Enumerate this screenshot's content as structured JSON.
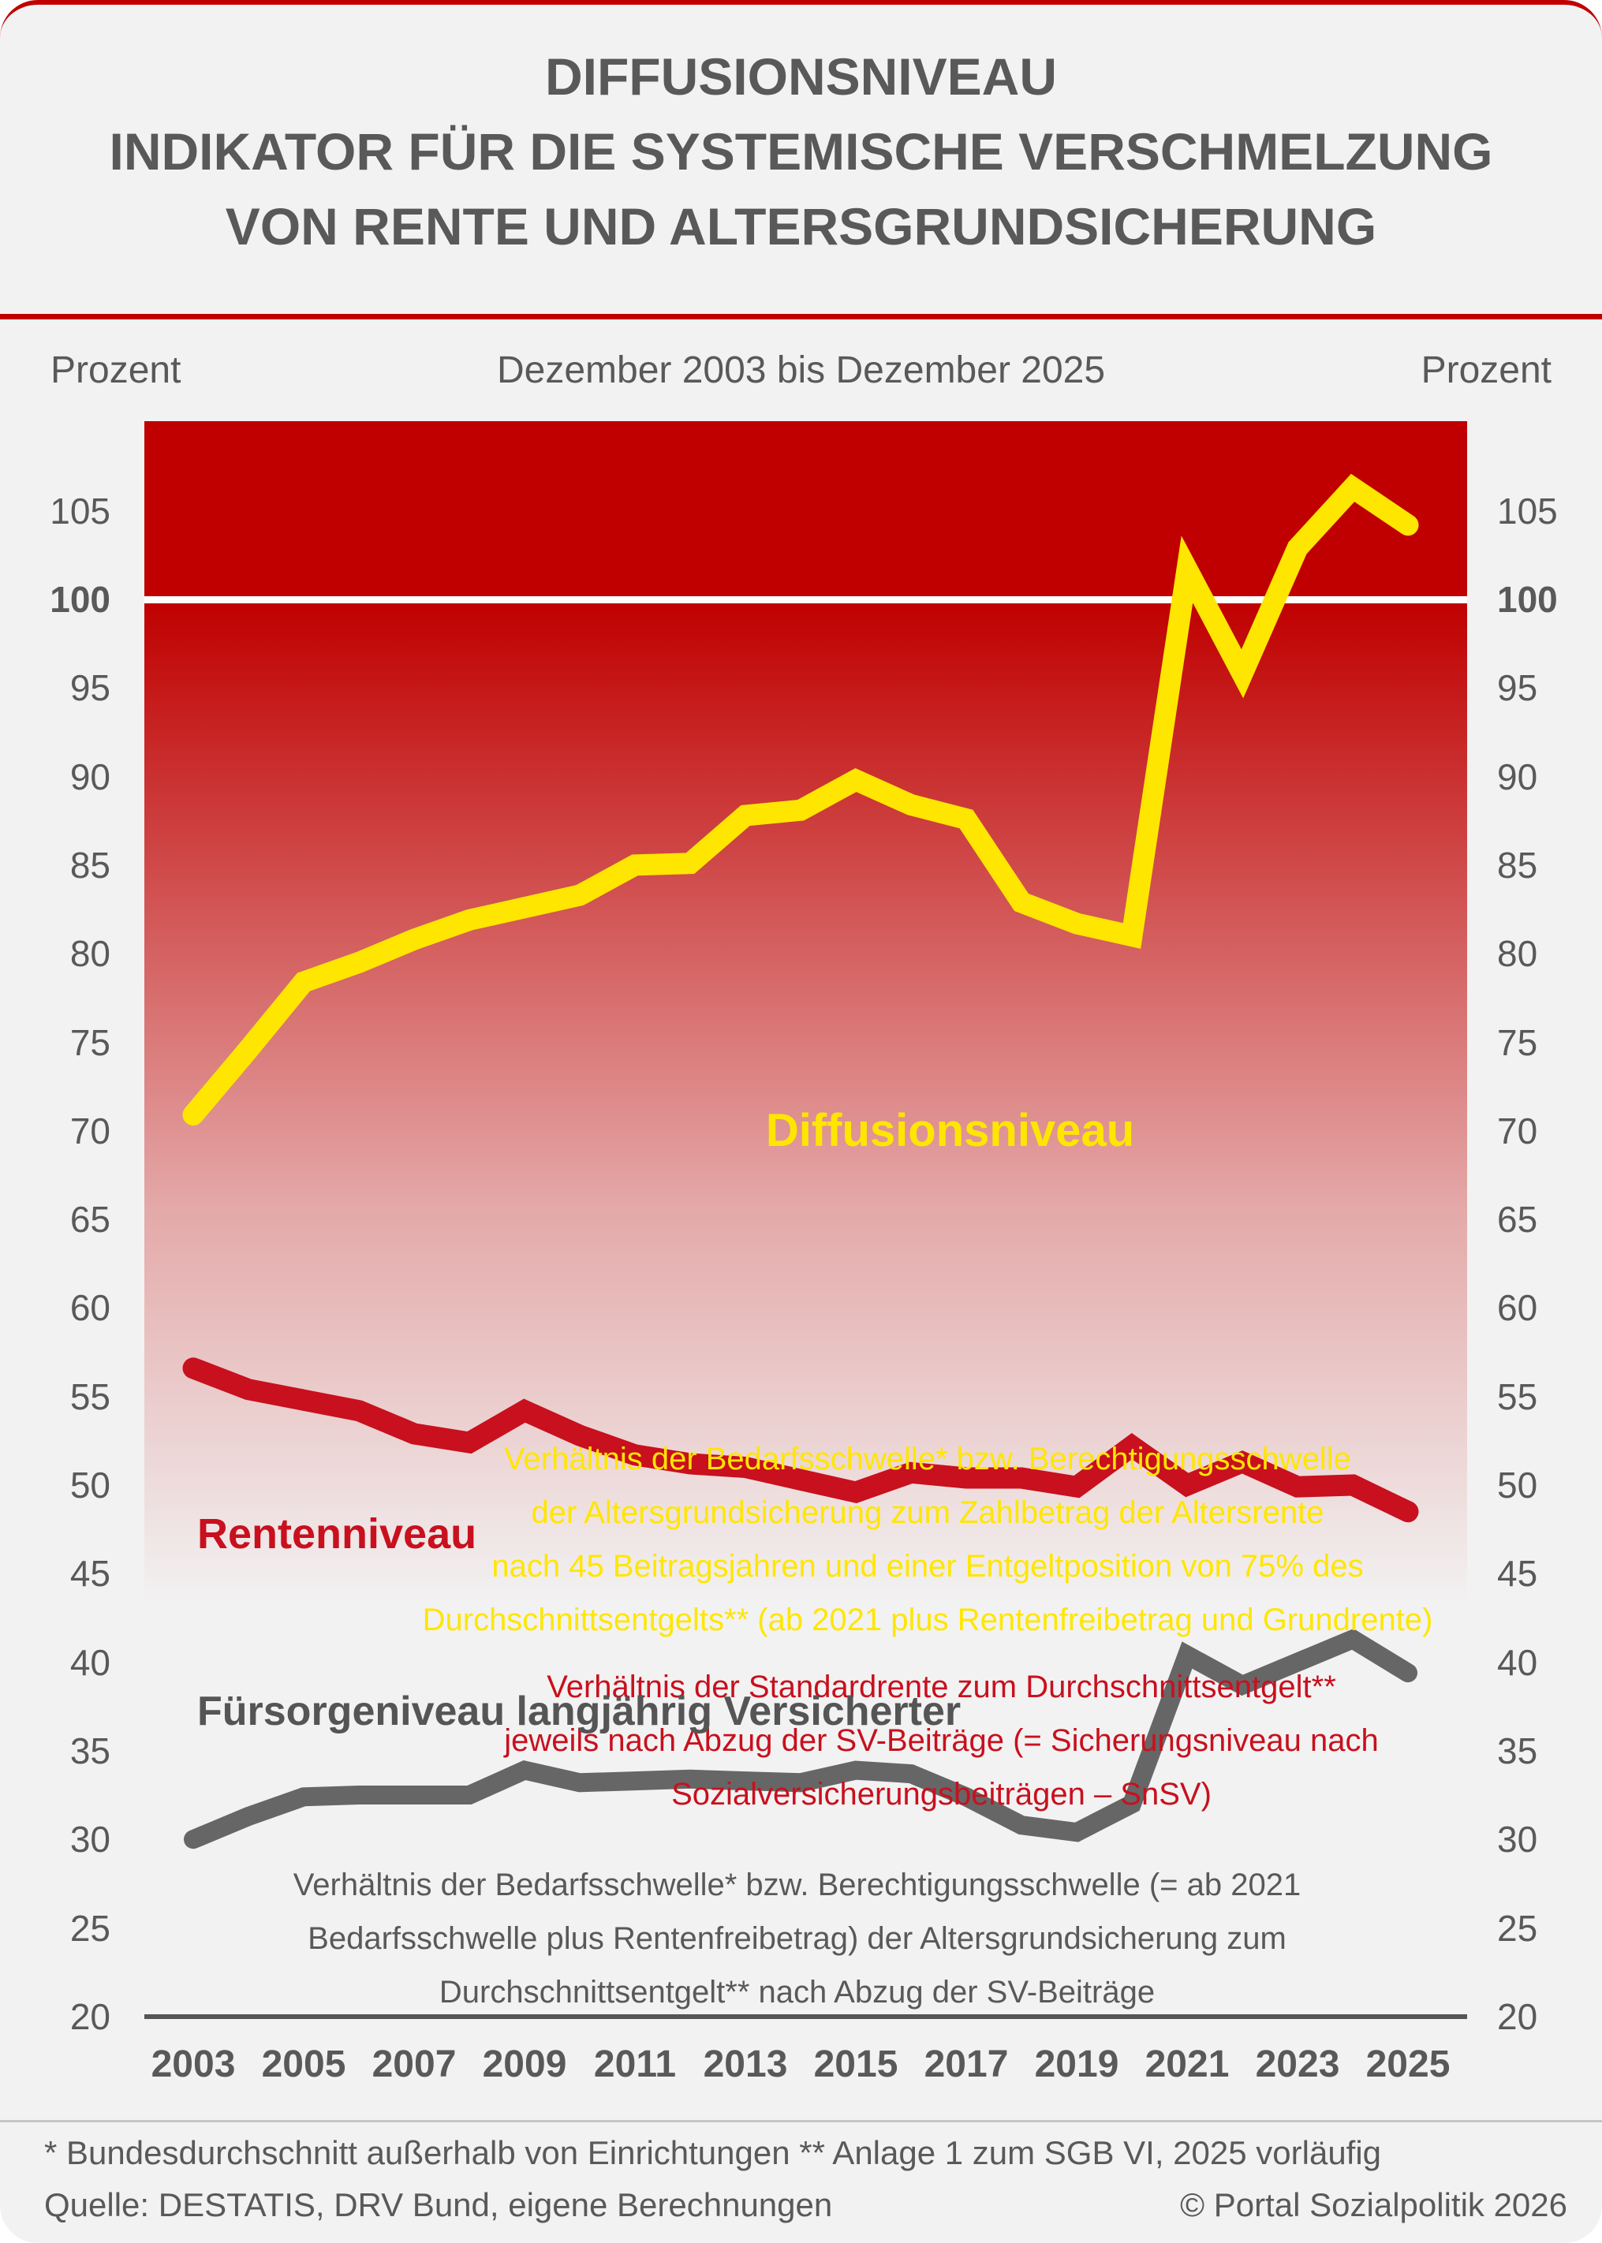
{
  "page": {
    "title_lines": [
      "DIFFUSIONSNIVEAU",
      "INDIKATOR FÜR DIE SYSTEMISCHE VERSCHMELZUNG",
      "VON RENTE UND ALTERSGRUNDSICHERUNG"
    ],
    "axis_unit_left": "Prozent",
    "axis_unit_right": "Prozent",
    "subtitle": "Dezember 2003 bis Dezember 2025",
    "footer": {
      "note": "* Bundesdurchschnitt außerhalb von Einrichtungen ** Anlage 1 zum SGB VI, 2025 vorläufig",
      "source": "Quelle: DESTATIS, DRV Bund, eigene Berechnungen",
      "copyright": "© Portal Sozialpolitik 2026"
    },
    "colors": {
      "accent_red": "#c00000",
      "line_yellow": "#ffe600",
      "line_red": "#c8101e",
      "line_gray": "#666666",
      "text_gray": "#595959",
      "card_background": "#f2f2f2",
      "reference_line": "#ffffff"
    }
  },
  "chart_data": {
    "type": "line",
    "title": "Diffusionsniveau - Indikator für die systemische Verschmelzung von Rente und Altersgrundsicherung",
    "subtitle": "Dezember 2003 bis Dezember 2025",
    "ylabel": "Prozent",
    "ylim": [
      20,
      110
    ],
    "grid": false,
    "legend_position": "inline-labels",
    "reference_line": 100,
    "yticks": [
      105,
      100,
      95,
      90,
      85,
      80,
      75,
      70,
      65,
      60,
      55,
      50,
      45,
      40,
      35,
      30,
      25,
      20
    ],
    "xtick_labels": [
      2003,
      2005,
      2007,
      2009,
      2011,
      2013,
      2015,
      2017,
      2019,
      2021,
      2023,
      2025
    ],
    "x": [
      2003,
      2004,
      2005,
      2006,
      2007,
      2008,
      2009,
      2010,
      2011,
      2012,
      2013,
      2014,
      2015,
      2016,
      2017,
      2018,
      2019,
      2020,
      2021,
      2022,
      2023,
      2024,
      2025
    ],
    "series": [
      {
        "name": "Diffusionsniveau",
        "color": "#ffe600",
        "values": [
          70.9,
          74.6,
          78.4,
          79.5,
          80.8,
          81.9,
          82.6,
          83.3,
          85.0,
          85.1,
          87.8,
          88.1,
          89.8,
          88.4,
          87.6,
          82.9,
          81.7,
          81.0,
          101.7,
          95.8,
          102.9,
          106.3,
          104.2
        ]
      },
      {
        "name": "Rentenniveau",
        "color": "#c8101e",
        "values": [
          56.6,
          55.4,
          54.8,
          54.2,
          52.9,
          52.4,
          54.2,
          52.8,
          51.7,
          51.2,
          51.0,
          50.3,
          49.6,
          50.7,
          50.4,
          50.4,
          49.9,
          52.2,
          50.0,
          51.3,
          49.9,
          50.0,
          48.5
        ]
      },
      {
        "name": "Fürsorgeniveau langjährig Versicherter",
        "color": "#666666",
        "values": [
          30.0,
          31.3,
          32.4,
          32.5,
          32.5,
          32.5,
          33.9,
          33.2,
          33.3,
          33.4,
          33.3,
          33.2,
          33.9,
          33.7,
          32.4,
          30.8,
          30.4,
          32.0,
          40.4,
          38.7,
          40.0,
          41.3,
          39.4
        ]
      }
    ],
    "annotations": {
      "diffusion_label": "Diffusionsniveau",
      "diffusion_desc": [
        "Verhältnis der Bedarfsschwelle* bzw. Berechtigungsschwelle",
        "der Altersgrundsicherung zum Zahlbetrag der Altersrente",
        "nach 45 Beitragsjahren und einer Entgeltposition von 75% des",
        "Durchschnittsentgelts** (ab 2021 plus Rentenfreibetrag und Grundrente)"
      ],
      "renten_label": "Rentenniveau",
      "renten_desc": [
        "Verhältnis der Standardrente zum Durchschnittsentgelt**",
        "jeweils nach Abzug der SV-Beiträge (= Sicherungsniveau nach",
        "Sozialversicherungsbeiträgen – SnSV)"
      ],
      "fuersorge_label": "Fürsorgeniveau langjährig Versicherter",
      "fuersorge_desc": [
        "Verhältnis der Bedarfsschwelle* bzw. Berechtigungsschwelle (= ab 2021",
        "Bedarfsschwelle plus Rentenfreibetrag) der Altersgrundsicherung zum",
        "Durchschnittsentgelt** nach Abzug der SV-Beiträge"
      ]
    }
  }
}
